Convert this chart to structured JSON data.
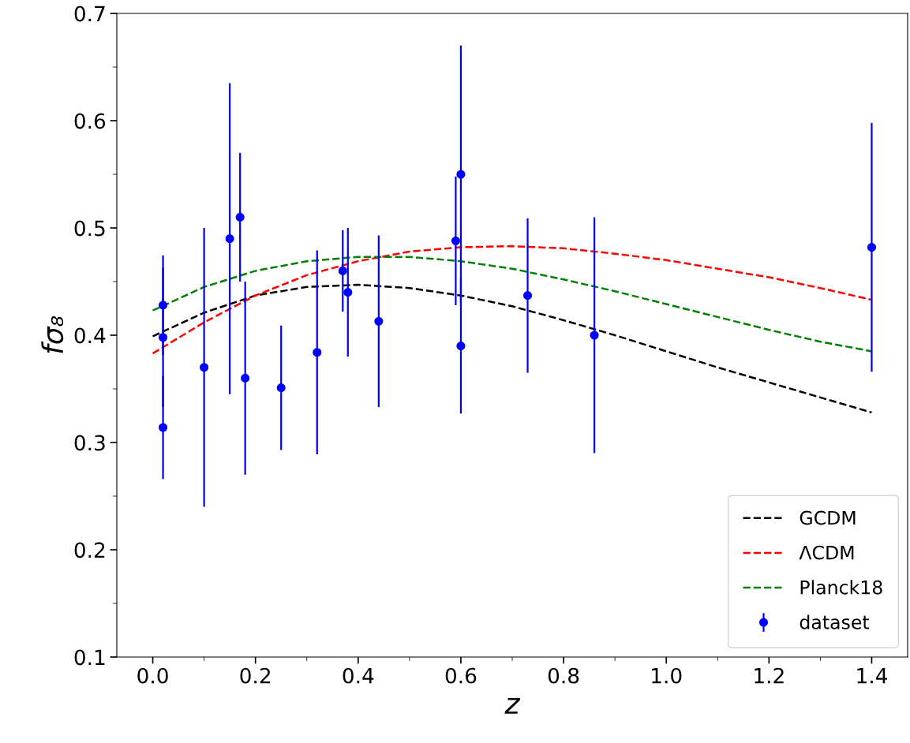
{
  "chart_data": {
    "type": "line",
    "xlabel": "z",
    "ylabel": "fσ₈",
    "xlim": [
      -0.07,
      1.47
    ],
    "ylim": [
      0.1,
      0.7
    ],
    "xticks": [
      {
        "value": 0,
        "label": "0.0"
      },
      0.2,
      0.4,
      0.6,
      0.8,
      {
        "value": 1,
        "label": "1.0"
      },
      1.2,
      1.4
    ],
    "yticks": [
      0.1,
      0.2,
      0.3,
      0.4,
      0.5,
      0.6,
      0.7
    ],
    "grid": false,
    "legend": "bottom right",
    "series": [
      {
        "name": "GCDM",
        "color": "#000000",
        "line_style": "dashed",
        "marker": "none",
        "x": [
          0,
          0.1,
          0.2,
          0.3,
          0.4,
          0.5,
          0.6,
          0.7,
          0.8,
          0.9,
          1.0,
          1.1,
          1.2,
          1.3,
          1.4
        ],
        "values": [
          0.399,
          0.421,
          0.437,
          0.445,
          0.447,
          0.444,
          0.437,
          0.427,
          0.414,
          0.4,
          0.385,
          0.37,
          0.356,
          0.342,
          0.328
        ]
      },
      {
        "name": "ΛCDM",
        "color": "#ff0000",
        "line_style": "dashed",
        "marker": "none",
        "x": [
          0,
          0.1,
          0.2,
          0.3,
          0.4,
          0.5,
          0.6,
          0.7,
          0.8,
          0.9,
          1.0,
          1.1,
          1.2,
          1.3,
          1.4
        ],
        "values": [
          0.383,
          0.412,
          0.437,
          0.456,
          0.469,
          0.478,
          0.482,
          0.483,
          0.481,
          0.476,
          0.47,
          0.462,
          0.454,
          0.444,
          0.433
        ]
      },
      {
        "name": "Planck18",
        "color": "#008000",
        "line_style": "dashed",
        "marker": "none",
        "x": [
          0,
          0.1,
          0.2,
          0.3,
          0.4,
          0.5,
          0.6,
          0.7,
          0.8,
          0.9,
          1.0,
          1.1,
          1.2,
          1.3,
          1.4
        ],
        "values": [
          0.423,
          0.445,
          0.46,
          0.469,
          0.473,
          0.473,
          0.469,
          0.462,
          0.452,
          0.441,
          0.429,
          0.417,
          0.405,
          0.394,
          0.385
        ]
      },
      {
        "name": "dataset",
        "type": "scatter",
        "color": "#0000ff",
        "marker": "circle",
        "x": [
          0.02,
          0.02,
          0.02,
          0.1,
          0.15,
          0.17,
          0.18,
          0.25,
          0.32,
          0.37,
          0.38,
          0.44,
          0.59,
          0.6,
          0.6,
          0.73,
          0.86,
          1.4
        ],
        "values": [
          0.428,
          0.398,
          0.314,
          0.37,
          0.49,
          0.51,
          0.36,
          0.351,
          0.384,
          0.46,
          0.44,
          0.413,
          0.488,
          0.55,
          0.39,
          0.437,
          0.4,
          0.482
        ],
        "errors": [
          0.0465,
          0.065,
          0.048,
          0.13,
          0.145,
          0.06,
          0.09,
          0.058,
          0.095,
          0.038,
          0.06,
          0.08,
          0.06,
          0.12,
          0.063,
          0.072,
          0.11,
          0.116
        ]
      }
    ]
  }
}
